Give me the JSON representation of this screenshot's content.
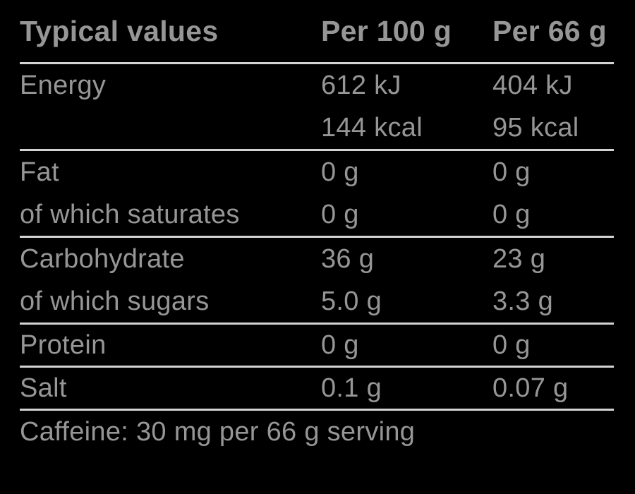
{
  "colors": {
    "background": "#000000",
    "text": "#969696",
    "rule": "#d3d3d3"
  },
  "table": {
    "header": {
      "label": "Typical values",
      "per_100g": "Per 100 g",
      "per_66g": "Per 66 g"
    },
    "rows": [
      {
        "label": "Energy",
        "per_100g": "612 kJ\n144 kcal",
        "per_66g": "404 kJ\n95 kcal"
      },
      {
        "label": "Fat",
        "per_100g": "0 g",
        "per_66g": "0 g"
      },
      {
        "label": "of which saturates",
        "per_100g": "0 g",
        "per_66g": "0 g"
      },
      {
        "label": "Carbohydrate",
        "per_100g": "36 g",
        "per_66g": "23 g"
      },
      {
        "label": "of which sugars",
        "per_100g": "5.0 g",
        "per_66g": "3.3 g"
      },
      {
        "label": "Protein",
        "per_100g": "0 g",
        "per_66g": "0 g"
      },
      {
        "label": "Salt",
        "per_100g": "0.1 g",
        "per_66g": "0.07 g"
      }
    ],
    "footnote": "Caffeine: 30 mg per 66 g serving"
  }
}
